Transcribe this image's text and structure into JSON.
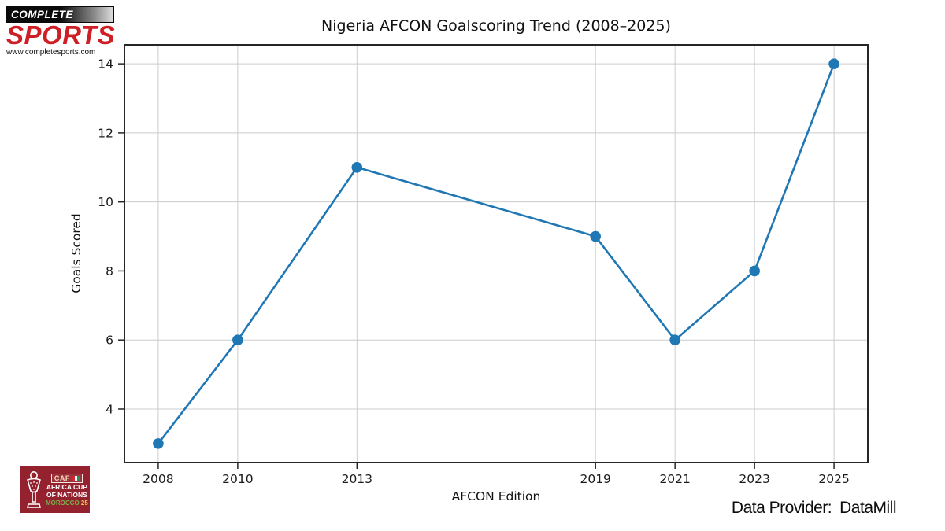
{
  "branding": {
    "complete_sports": {
      "top_text": "COMPLETE",
      "main_text": "SPORTS",
      "url": "www.completesports.com",
      "red": "#ce1f26"
    },
    "caf_logo": {
      "caf": "CAF",
      "line1": "AFRICA CUP",
      "line2": "OF NATIONS",
      "morocco": "MOROCCO",
      "year": "25",
      "bg": "#93212e"
    }
  },
  "footer": {
    "data_provider_label": "Data Provider:",
    "data_provider_value": "DataMill"
  },
  "chart_data": {
    "type": "line",
    "title": "Nigeria AFCON Goalscoring Trend (2008–2025)",
    "xlabel": "AFCON Edition",
    "ylabel": "Goals Scored",
    "x": [
      2008,
      2010,
      2013,
      2019,
      2021,
      2023,
      2025
    ],
    "values": [
      3,
      6,
      11,
      9,
      6,
      8,
      14
    ],
    "x_ticks": [
      2008,
      2010,
      2013,
      2019,
      2021,
      2023,
      2025
    ],
    "y_ticks": [
      4,
      6,
      8,
      10,
      12,
      14
    ],
    "xlim": [
      2007.15,
      2025.85
    ],
    "ylim": [
      2.45,
      14.55
    ],
    "grid": true,
    "legend": "none",
    "line_color": "#1f77b4",
    "marker": "circle",
    "grid_color": "#cccccc",
    "spine_color": "#262626",
    "tick_text_color": "#1a1a1a"
  }
}
